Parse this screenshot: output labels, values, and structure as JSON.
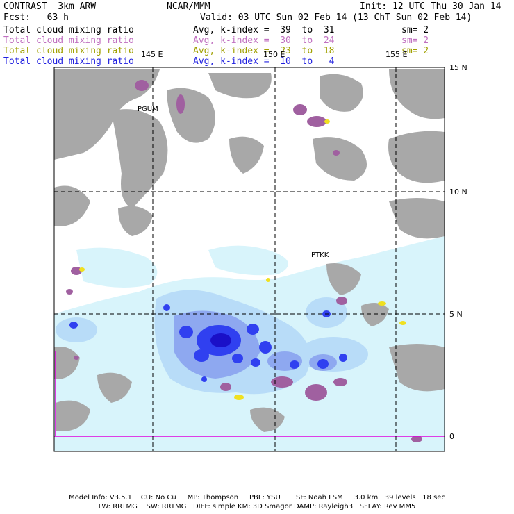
{
  "header": {
    "title": "CONTRAST  3km ARW",
    "center": "NCAR/MMM",
    "init": "Init: 12 UTC Thu 30 Jan 14",
    "fcst": "Fcst:   63 h",
    "valid": "Valid: 03 UTC Sun 02 Feb 14 (13 ChT Sun 02 Feb 14)"
  },
  "fields": [
    {
      "name": "Total cloud mixing ratio",
      "avg": "Avg, k-index =  39  to  31",
      "sm": "sm= 2",
      "color": "#000000"
    },
    {
      "name": "Total cloud mixing ratio",
      "avg": "Avg, k-index =  30  to  24",
      "sm": "sm= 2",
      "color": "#c070c0"
    },
    {
      "name": "Total cloud mixing ratio",
      "avg": "Avg, k-index =  23  to  18",
      "sm": "sm= 2",
      "color": "#a0a000"
    },
    {
      "name": "Total cloud mixing ratio",
      "avg": "Avg, k-index =  10  to   4",
      "sm": "",
      "color": "#2020e0"
    }
  ],
  "map": {
    "lon_labels": [
      "145 E",
      "150 E",
      "155 E"
    ],
    "lat_labels": [
      "15 N",
      "10 N",
      "5 N",
      "0"
    ],
    "stations": [
      "PGUM",
      "PTKK"
    ]
  },
  "footer": {
    "line1": "Model Info: V3.5.1    CU: No Cu     MP: Thompson     PBL: YSU       SF: Noah LSM     3.0 km   39 levels   18 sec",
    "line2": "LW: RRTMG    SW: RRTMG   DIFF: simple KM: 3D Smagor DAMP: Rayleigh3   SFLAY: Rev MM5"
  },
  "colors": {
    "cloud_gray": "#a8a8a8",
    "light_blue": "#d8f4fb",
    "mid_blue": "#b8dcf8",
    "deep_blue": "#3040f0",
    "purple": "#a060a0",
    "yellow": "#f0e020",
    "equator_line": "#e000e0"
  }
}
